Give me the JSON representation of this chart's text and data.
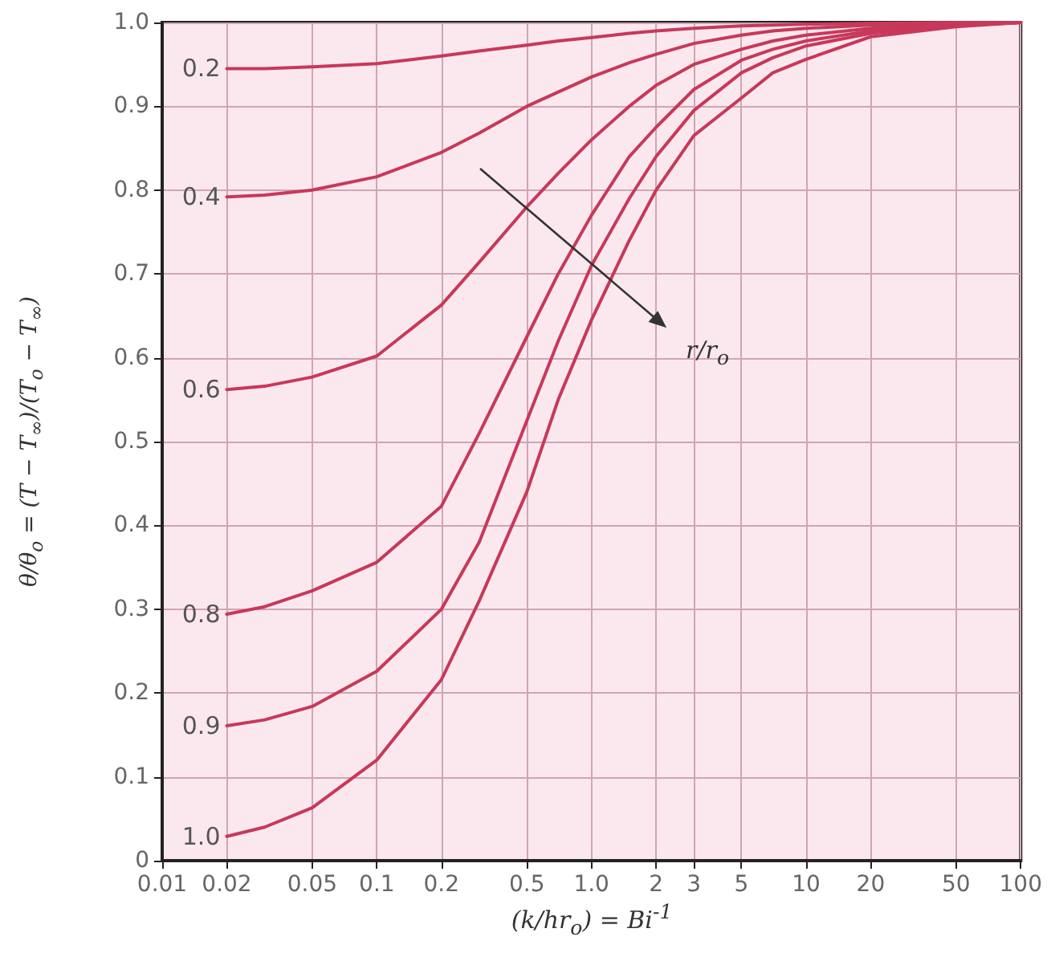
{
  "chart_data": {
    "type": "line",
    "xlabel": "(k/hr$_{o}$) = Bi$^{-1}$",
    "ylabel": "θ/θ$_{o}$ = (T − T$_{∞}$)/(T$_{o}$ − T$_{∞}$)",
    "annotations": [
      "r/r$_{o}$"
    ],
    "x": [
      0.02,
      0.03,
      0.05,
      0.1,
      0.2,
      0.3,
      0.5,
      0.7,
      1,
      1.5,
      2,
      3,
      5,
      7,
      10,
      20,
      50,
      100
    ],
    "series": [
      {
        "name": "0.2",
        "color": "#c8385a",
        "values": [
          0.945,
          0.945,
          0.947,
          0.951,
          0.96,
          0.966,
          0.973,
          0.978,
          0.982,
          0.987,
          0.99,
          0.993,
          0.996,
          0.997,
          0.998,
          0.999,
          1,
          1
        ]
      },
      {
        "name": "0.4",
        "color": "#c8385a",
        "values": [
          0.792,
          0.794,
          0.8,
          0.816,
          0.845,
          0.868,
          0.9,
          0.917,
          0.935,
          0.952,
          0.962,
          0.975,
          0.985,
          0.99,
          0.993,
          0.997,
          0.999,
          1
        ]
      },
      {
        "name": "0.6",
        "color": "#c8385a",
        "values": [
          0.562,
          0.566,
          0.577,
          0.602,
          0.663,
          0.714,
          0.78,
          0.82,
          0.86,
          0.9,
          0.925,
          0.95,
          0.968,
          0.978,
          0.985,
          0.993,
          0.998,
          1
        ]
      },
      {
        "name": "0.8",
        "color": "#c8385a",
        "values": [
          0.294,
          0.303,
          0.322,
          0.356,
          0.423,
          0.51,
          0.625,
          0.7,
          0.77,
          0.84,
          0.875,
          0.92,
          0.955,
          0.968,
          0.978,
          0.99,
          0.997,
          1
        ]
      },
      {
        "name": "0.9",
        "color": "#c8385a",
        "values": [
          0.161,
          0.168,
          0.184,
          0.226,
          0.3,
          0.38,
          0.525,
          0.62,
          0.71,
          0.79,
          0.84,
          0.895,
          0.94,
          0.958,
          0.972,
          0.987,
          0.996,
          1
        ]
      },
      {
        "name": "1.0",
        "color": "#c8385a",
        "values": [
          0.029,
          0.04,
          0.063,
          0.12,
          0.216,
          0.31,
          0.44,
          0.55,
          0.645,
          0.74,
          0.8,
          0.865,
          0.91,
          0.94,
          0.956,
          0.983,
          0.995,
          1
        ]
      }
    ],
    "log": "x",
    "xlim": [
      0.01,
      100
    ],
    "xticks": [
      0.01,
      0.02,
      0.05,
      0.1,
      0.2,
      0.5,
      {
        "value": 1,
        "label": "1.0"
      },
      2,
      3,
      5,
      10,
      20,
      50,
      100
    ],
    "ylim": [
      0,
      1
    ],
    "yticks": [
      0,
      0.1,
      0.2,
      0.3,
      0.4,
      0.5,
      0.6,
      0.7,
      0.8,
      0.9,
      {
        "value": 1,
        "label": "1.0"
      }
    ],
    "grid": true,
    "legend": false,
    "marker": "none",
    "line_style": "solid"
  }
}
